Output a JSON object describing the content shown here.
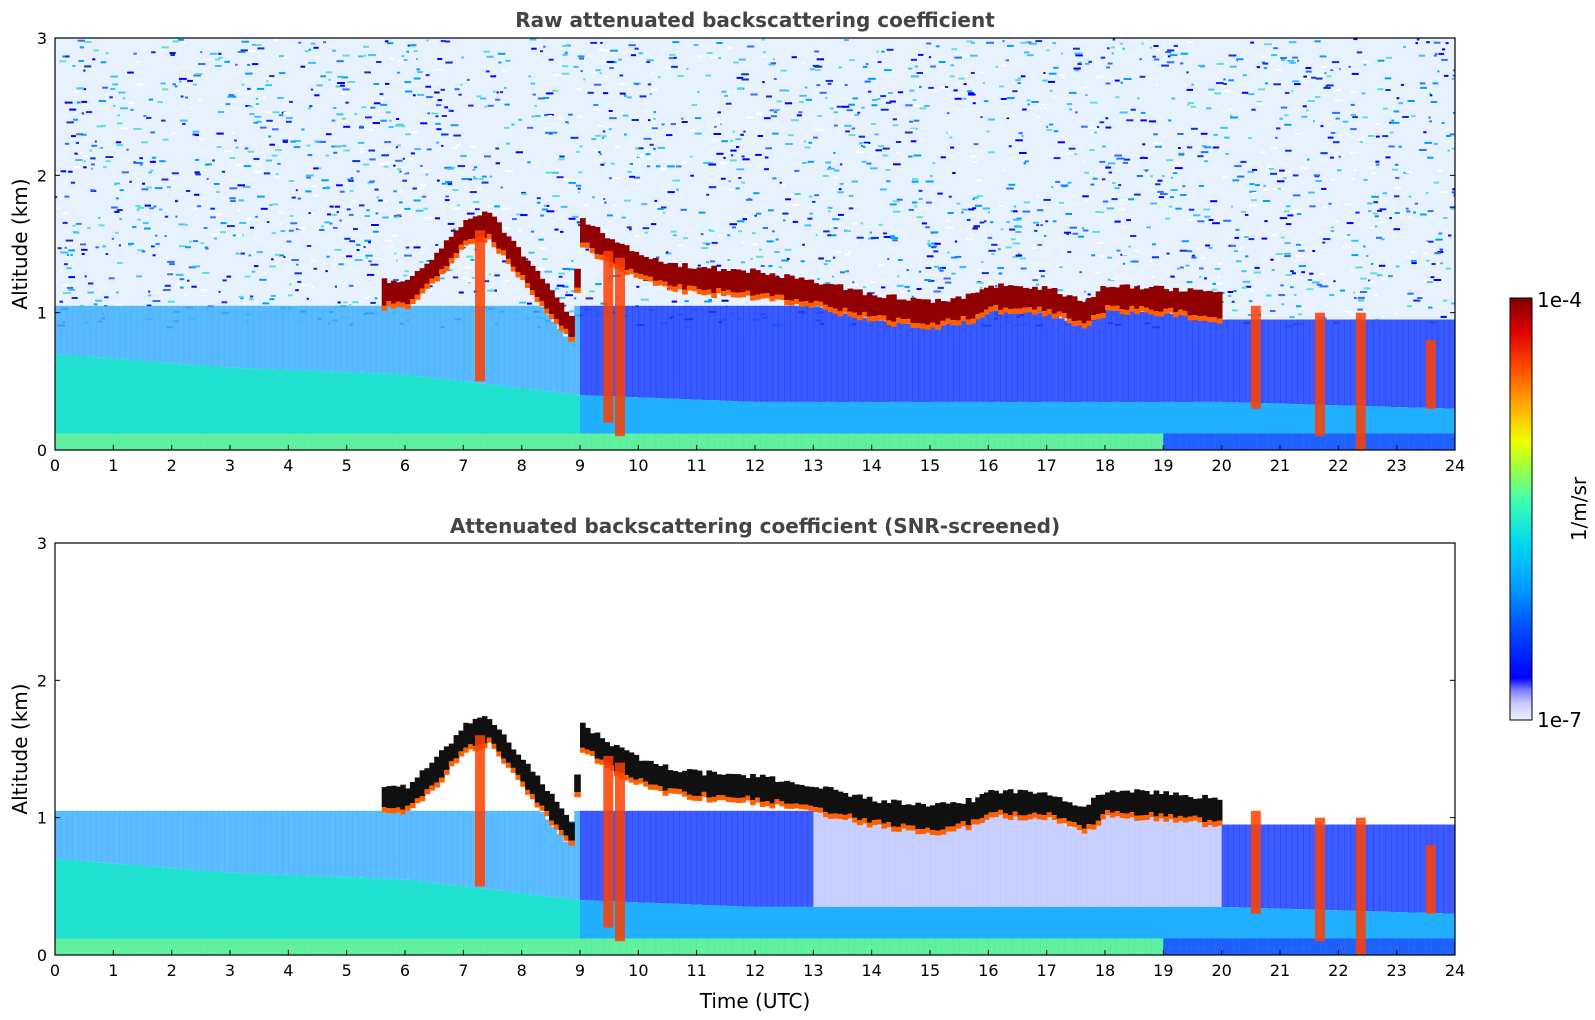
{
  "chart_data": [
    {
      "type": "heatmap",
      "title": "Raw attenuated backscattering coefficient",
      "xlabel": "",
      "ylabel": "Altitude (km)",
      "xlim": [
        0,
        24
      ],
      "ylim": [
        0,
        3
      ],
      "xticks": [
        "0",
        "1",
        "2",
        "3",
        "4",
        "5",
        "6",
        "7",
        "8",
        "9",
        "10",
        "11",
        "12",
        "13",
        "14",
        "15",
        "16",
        "17",
        "18",
        "19",
        "20",
        "21",
        "22",
        "23",
        "24"
      ],
      "yticks": [
        "0",
        "1",
        "2",
        "3"
      ],
      "screened": false,
      "cloud_layer": [
        [
          5.6,
          1.15
        ],
        [
          6.0,
          1.15
        ],
        [
          6.5,
          1.35
        ],
        [
          7.0,
          1.6
        ],
        [
          7.4,
          1.65
        ],
        [
          8.8,
          0.9
        ],
        [
          9.0,
          1.6
        ],
        [
          9.5,
          1.45
        ],
        [
          10.0,
          1.35
        ],
        [
          10.5,
          1.28
        ],
        [
          11.0,
          1.25
        ],
        [
          12.0,
          1.22
        ],
        [
          13.0,
          1.15
        ],
        [
          14.0,
          1.05
        ],
        [
          15.0,
          1.0
        ],
        [
          15.7,
          1.05
        ],
        [
          16.0,
          1.12
        ],
        [
          17.0,
          1.1
        ],
        [
          17.6,
          1.0
        ],
        [
          18.0,
          1.12
        ],
        [
          19.0,
          1.1
        ],
        [
          20.0,
          1.05
        ]
      ],
      "boundary_layer_top": [
        [
          0,
          0.7
        ],
        [
          3,
          0.6
        ],
        [
          6,
          0.55
        ],
        [
          9,
          0.4
        ],
        [
          12,
          0.35
        ],
        [
          15,
          0.35
        ],
        [
          18,
          0.35
        ],
        [
          20,
          0.35
        ],
        [
          24,
          0.3
        ]
      ]
    },
    {
      "type": "heatmap",
      "title": "Attenuated backscattering coefficient (SNR-screened)",
      "xlabel": "Time (UTC)",
      "ylabel": "Altitude (km)",
      "xlim": [
        0,
        24
      ],
      "ylim": [
        0,
        3
      ],
      "xticks": [
        "0",
        "1",
        "2",
        "3",
        "4",
        "5",
        "6",
        "7",
        "8",
        "9",
        "10",
        "11",
        "12",
        "13",
        "14",
        "15",
        "16",
        "17",
        "18",
        "19",
        "20",
        "21",
        "22",
        "23",
        "24"
      ],
      "yticks": [
        "0",
        "1",
        "2",
        "3"
      ],
      "screened": true,
      "cloud_layer": [
        [
          5.6,
          1.15
        ],
        [
          6.0,
          1.15
        ],
        [
          6.5,
          1.35
        ],
        [
          7.0,
          1.6
        ],
        [
          7.4,
          1.65
        ],
        [
          8.8,
          0.9
        ],
        [
          9.0,
          1.6
        ],
        [
          9.5,
          1.45
        ],
        [
          10.0,
          1.35
        ],
        [
          10.5,
          1.28
        ],
        [
          11.0,
          1.25
        ],
        [
          12.0,
          1.22
        ],
        [
          13.0,
          1.15
        ],
        [
          14.0,
          1.05
        ],
        [
          15.0,
          1.0
        ],
        [
          15.7,
          1.05
        ],
        [
          16.0,
          1.12
        ],
        [
          17.0,
          1.1
        ],
        [
          17.6,
          1.0
        ],
        [
          18.0,
          1.12
        ],
        [
          19.0,
          1.1
        ],
        [
          20.0,
          1.05
        ]
      ],
      "boundary_layer_top": [
        [
          0,
          0.7
        ],
        [
          3,
          0.6
        ],
        [
          6,
          0.55
        ],
        [
          9,
          0.4
        ],
        [
          12,
          0.35
        ],
        [
          15,
          0.35
        ],
        [
          18,
          0.35
        ],
        [
          20,
          0.35
        ],
        [
          24,
          0.3
        ]
      ]
    }
  ],
  "colorbar": {
    "label": "1/m/sr",
    "max_label": "1e-4",
    "min_label": "1e-7",
    "range": [
      1e-07,
      0.0001
    ],
    "scale": "log",
    "colors": [
      "#f0f0ff",
      "#c8c8ff",
      "#8080ff",
      "#0000ff",
      "#0050ff",
      "#00a0ff",
      "#00d8f0",
      "#40ffb0",
      "#a0ff40",
      "#f0ff00",
      "#ffb000",
      "#ff5000",
      "#e00000",
      "#800000"
    ]
  }
}
